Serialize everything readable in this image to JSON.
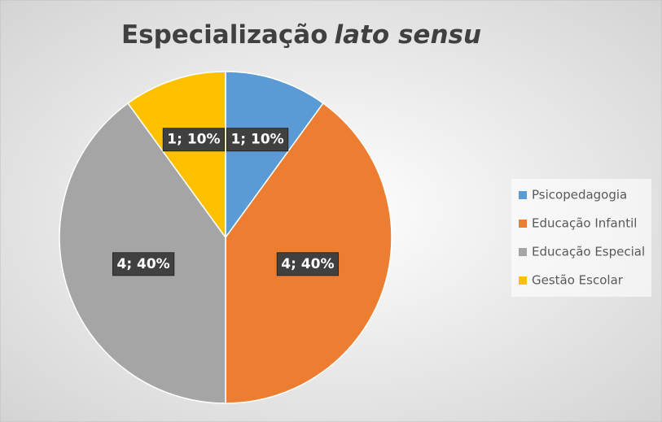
{
  "chart_data": {
    "type": "pie",
    "title": "Especialização",
    "title_italic": "lato sensu",
    "categories": [
      "Psicopedagogia",
      "Educação Infantil",
      "Educação Especial",
      "Gestão Escolar"
    ],
    "values": [
      1,
      4,
      4,
      1
    ],
    "value_labels": [
      "1; 10%",
      "4; 40%",
      "4; 40%",
      "1; 10%"
    ],
    "colors": [
      "#5b9bd5",
      "#ed7d31",
      "#a5a5a5",
      "#ffc000"
    ],
    "legend": "right"
  }
}
